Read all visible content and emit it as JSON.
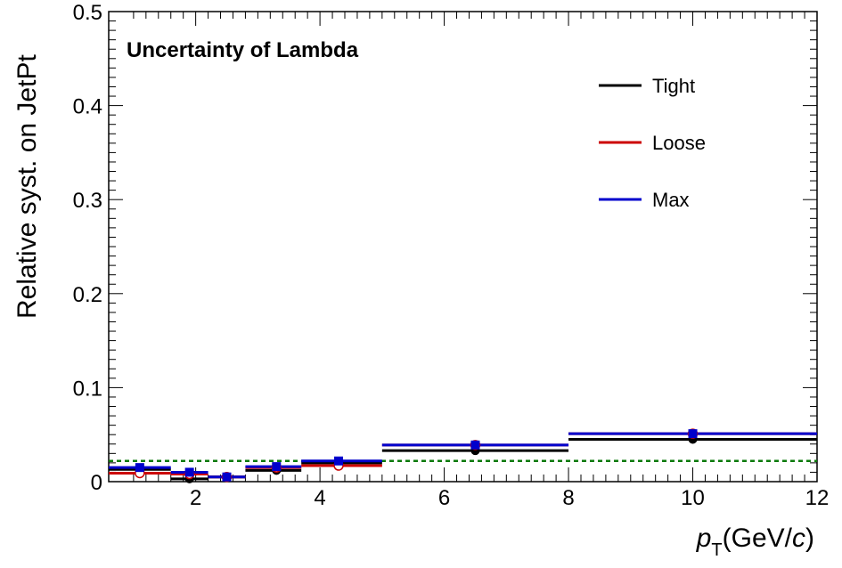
{
  "chart_data": {
    "type": "scatter",
    "title": "Uncertainty of Lambda",
    "xlabel_italic": "p",
    "xlabel_sub": "T",
    "xlabel_unit_pre": "(GeV/",
    "xlabel_unit_italic": "c",
    "xlabel_unit_post": ")",
    "ylabel": "Relative syst. on JetPt",
    "xlim": [
      0.6,
      12
    ],
    "ylim": [
      0,
      0.5
    ],
    "x_ticks": [
      2,
      4,
      6,
      8,
      10,
      12
    ],
    "x_tick_labels": [
      "2",
      "4",
      "6",
      "8",
      "10",
      "12"
    ],
    "y_ticks": [
      0,
      0.1,
      0.2,
      0.3,
      0.4,
      0.5
    ],
    "y_tick_labels": [
      "0",
      "0.1",
      "0.2",
      "0.3",
      "0.4",
      "0.5"
    ],
    "reference_line": {
      "y": 0.022,
      "color": "#0a7a0a",
      "style": "dashed"
    },
    "legend_position": "top-right",
    "series": [
      {
        "name": "Tight",
        "color": "#000000",
        "marker": "filled-circle",
        "bins": [
          {
            "x": 1.1,
            "xlow": 0.6,
            "xhigh": 1.6,
            "y": 0.013
          },
          {
            "x": 1.9,
            "xlow": 1.6,
            "xhigh": 2.2,
            "y": 0.003
          },
          {
            "x": 2.5,
            "xlow": 2.2,
            "xhigh": 2.8,
            "y": 0.005
          },
          {
            "x": 3.3,
            "xlow": 2.8,
            "xhigh": 3.7,
            "y": 0.012
          },
          {
            "x": 4.3,
            "xlow": 3.7,
            "xhigh": 5.0,
            "y": 0.02
          },
          {
            "x": 6.5,
            "xlow": 5.0,
            "xhigh": 8.0,
            "y": 0.033
          },
          {
            "x": 10.0,
            "xlow": 8.0,
            "xhigh": 12.0,
            "y": 0.045
          }
        ]
      },
      {
        "name": "Loose",
        "color": "#cc0000",
        "marker": "open-circle",
        "bins": [
          {
            "x": 1.1,
            "xlow": 0.6,
            "xhigh": 1.6,
            "y": 0.009
          },
          {
            "x": 1.9,
            "xlow": 1.6,
            "xhigh": 2.2,
            "y": 0.008
          },
          {
            "x": 2.5,
            "xlow": 2.2,
            "xhigh": 2.8,
            "y": 0.005
          },
          {
            "x": 3.3,
            "xlow": 2.8,
            "xhigh": 3.7,
            "y": 0.015
          },
          {
            "x": 4.3,
            "xlow": 3.7,
            "xhigh": 5.0,
            "y": 0.017
          },
          {
            "x": 6.5,
            "xlow": 5.0,
            "xhigh": 8.0,
            "y": 0.039
          },
          {
            "x": 10.0,
            "xlow": 8.0,
            "xhigh": 12.0,
            "y": 0.051
          }
        ]
      },
      {
        "name": "Max",
        "color": "#0000cc",
        "marker": "filled-square",
        "bins": [
          {
            "x": 1.1,
            "xlow": 0.6,
            "xhigh": 1.6,
            "y": 0.015
          },
          {
            "x": 1.9,
            "xlow": 1.6,
            "xhigh": 2.2,
            "y": 0.01
          },
          {
            "x": 2.5,
            "xlow": 2.2,
            "xhigh": 2.8,
            "y": 0.005
          },
          {
            "x": 3.3,
            "xlow": 2.8,
            "xhigh": 3.7,
            "y": 0.016
          },
          {
            "x": 4.3,
            "xlow": 3.7,
            "xhigh": 5.0,
            "y": 0.022
          },
          {
            "x": 6.5,
            "xlow": 5.0,
            "xhigh": 8.0,
            "y": 0.039
          },
          {
            "x": 10.0,
            "xlow": 8.0,
            "xhigh": 12.0,
            "y": 0.051
          }
        ]
      }
    ]
  }
}
